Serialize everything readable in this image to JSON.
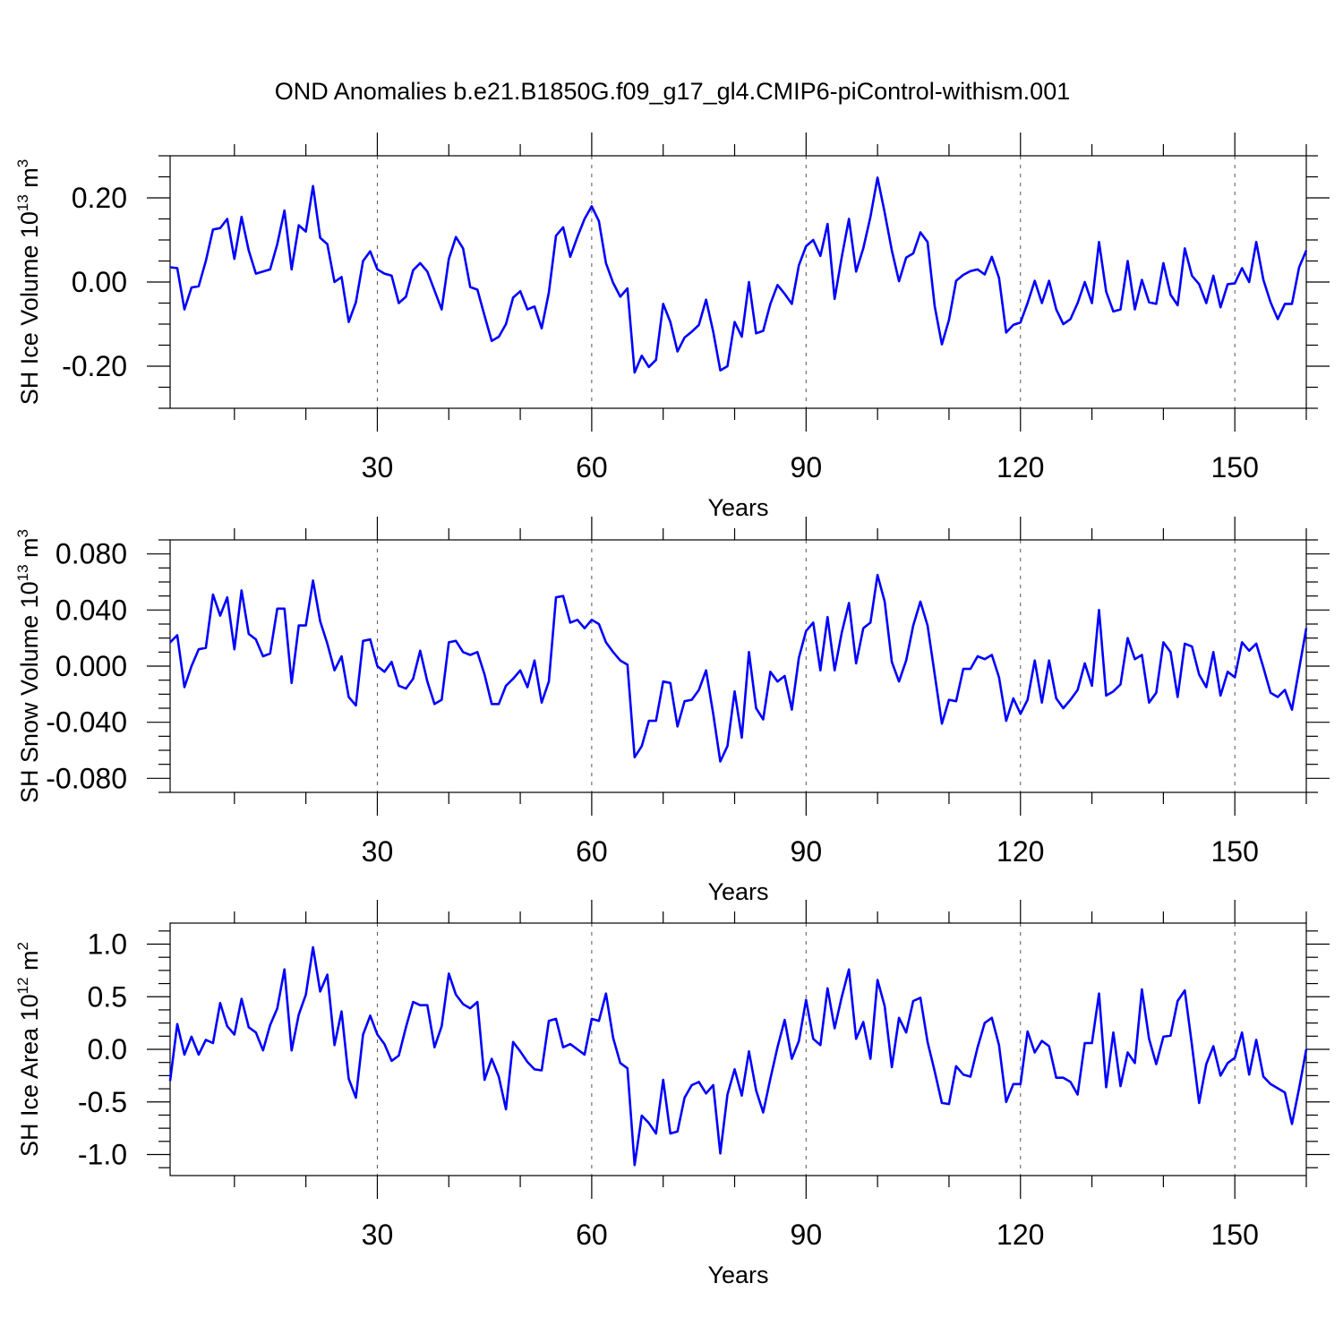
{
  "chart_data": {
    "title": "OND Anomalies b.e21.B1850G.f09_g17_gl4.CMIP6-piControl-withism.001",
    "panels": [
      {
        "type": "line",
        "ylabel": "SH Ice Volume 10",
        "ylabel_exp": "13",
        "ylabel_unit": " m",
        "ylabel_unit_exp": "3",
        "xlabel": "Years",
        "xlim": [
          1,
          160
        ],
        "ylim": [
          -0.3,
          0.3
        ],
        "yticks": [
          -0.2,
          0.0,
          0.2
        ],
        "ytick_labels": [
          "-0.20",
          "0.00",
          "0.20"
        ],
        "xticks": [
          30,
          60,
          90,
          120,
          150
        ],
        "xtick_labels": [
          "30",
          "60",
          "90",
          "120",
          "150"
        ],
        "grid_x": [
          30,
          60,
          90,
          120,
          150
        ],
        "color": "#0000ff",
        "values": [
          0.035,
          0.033,
          -0.065,
          -0.013,
          -0.01,
          0.05,
          0.125,
          0.128,
          0.15,
          0.055,
          0.155,
          0.075,
          0.02,
          0.025,
          0.03,
          0.09,
          0.17,
          0.03,
          0.135,
          0.12,
          0.228,
          0.105,
          0.09,
          0.0,
          0.012,
          -0.095,
          -0.048,
          0.05,
          0.073,
          0.03,
          0.02,
          0.015,
          -0.05,
          -0.035,
          0.028,
          0.045,
          0.025,
          -0.02,
          -0.065,
          0.055,
          0.107,
          0.08,
          -0.012,
          -0.018,
          -0.08,
          -0.14,
          -0.13,
          -0.1,
          -0.037,
          -0.022,
          -0.065,
          -0.058,
          -0.11,
          -0.025,
          0.11,
          0.13,
          0.06,
          0.107,
          0.15,
          0.18,
          0.145,
          0.045,
          -0.002,
          -0.035,
          -0.015,
          -0.215,
          -0.175,
          -0.202,
          -0.185,
          -0.052,
          -0.095,
          -0.165,
          -0.132,
          -0.118,
          -0.102,
          -0.042,
          -0.118,
          -0.21,
          -0.2,
          -0.095,
          -0.13,
          0.0,
          -0.122,
          -0.116,
          -0.052,
          -0.007,
          -0.028,
          -0.052,
          0.04,
          0.085,
          0.1,
          0.062,
          0.138,
          -0.04,
          0.06,
          0.15,
          0.025,
          0.08,
          0.155,
          0.248,
          0.165,
          0.075,
          0.002,
          0.058,
          0.068,
          0.118,
          0.095,
          -0.058,
          -0.148,
          -0.09,
          0.003,
          0.017,
          0.026,
          0.03,
          0.018,
          0.06,
          0.01,
          -0.12,
          -0.102,
          -0.096,
          -0.05,
          0.003,
          -0.05,
          0.003,
          -0.065,
          -0.1,
          -0.088,
          -0.05,
          0.0,
          -0.05,
          0.095,
          -0.023,
          -0.07,
          -0.065,
          0.05,
          -0.065,
          0.005,
          -0.048,
          -0.052,
          0.045,
          -0.03,
          -0.055,
          0.08,
          0.015,
          -0.005,
          -0.05,
          0.015,
          -0.06,
          -0.005,
          -0.003,
          0.033,
          0.0,
          0.095,
          0.005,
          -0.048,
          -0.088,
          -0.052,
          -0.052,
          0.035,
          0.075
        ]
      },
      {
        "type": "line",
        "ylabel": "SH Snow Volume 10",
        "ylabel_exp": "13",
        "ylabel_unit": " m",
        "ylabel_unit_exp": "3",
        "xlabel": "Years",
        "xlim": [
          1,
          160
        ],
        "ylim": [
          -0.09,
          0.09
        ],
        "yticks": [
          -0.08,
          -0.04,
          0.0,
          0.04,
          0.08
        ],
        "ytick_labels": [
          "-0.080",
          "-0.040",
          "0.000",
          "0.040",
          "0.080"
        ],
        "xticks": [
          30,
          60,
          90,
          120,
          150
        ],
        "xtick_labels": [
          "30",
          "60",
          "90",
          "120",
          "150"
        ],
        "grid_x": [
          30,
          60,
          90,
          120,
          150
        ],
        "color": "#0000ff",
        "values": [
          0.017,
          0.022,
          -0.015,
          0.0,
          0.012,
          0.013,
          0.051,
          0.036,
          0.049,
          0.012,
          0.054,
          0.023,
          0.019,
          0.007,
          0.009,
          0.041,
          0.041,
          -0.012,
          0.029,
          0.029,
          0.061,
          0.032,
          0.016,
          -0.003,
          0.007,
          -0.022,
          -0.028,
          0.018,
          0.019,
          0.0,
          -0.004,
          0.003,
          -0.014,
          -0.016,
          -0.009,
          0.011,
          -0.011,
          -0.027,
          -0.024,
          0.017,
          0.018,
          0.01,
          0.008,
          0.01,
          -0.006,
          -0.027,
          -0.027,
          -0.014,
          -0.009,
          -0.003,
          -0.015,
          0.004,
          -0.026,
          -0.011,
          0.049,
          0.05,
          0.031,
          0.033,
          0.027,
          0.033,
          0.03,
          0.017,
          0.01,
          0.004,
          0.001,
          -0.065,
          -0.057,
          -0.039,
          -0.039,
          -0.011,
          -0.012,
          -0.043,
          -0.025,
          -0.024,
          -0.017,
          -0.003,
          -0.034,
          -0.068,
          -0.057,
          -0.018,
          -0.051,
          0.01,
          -0.03,
          -0.038,
          -0.004,
          -0.011,
          -0.007,
          -0.031,
          0.006,
          0.025,
          0.031,
          -0.003,
          0.035,
          -0.003,
          0.024,
          0.045,
          0.002,
          0.027,
          0.031,
          0.065,
          0.046,
          0.003,
          -0.011,
          0.004,
          0.029,
          0.046,
          0.029,
          -0.006,
          -0.041,
          -0.024,
          -0.025,
          -0.002,
          -0.002,
          0.007,
          0.005,
          0.008,
          -0.008,
          -0.039,
          -0.023,
          -0.034,
          -0.024,
          0.004,
          -0.026,
          0.004,
          -0.023,
          -0.03,
          -0.024,
          -0.017,
          0.002,
          -0.014,
          0.04,
          -0.021,
          -0.018,
          -0.013,
          0.02,
          0.005,
          0.008,
          -0.026,
          -0.019,
          0.017,
          0.01,
          -0.022,
          0.016,
          0.014,
          -0.006,
          -0.015,
          0.01,
          -0.021,
          -0.004,
          -0.008,
          0.017,
          0.011,
          0.016,
          -0.001,
          -0.019,
          -0.022,
          -0.017,
          -0.031,
          -0.002,
          0.027
        ]
      },
      {
        "type": "line",
        "ylabel": "SH Ice Area 10",
        "ylabel_exp": "12",
        "ylabel_unit": " m",
        "ylabel_unit_exp": "2",
        "xlabel": "Years",
        "xlim": [
          1,
          160
        ],
        "ylim": [
          -1.2,
          1.2
        ],
        "yticks": [
          -1.0,
          -0.5,
          0.0,
          0.5,
          1.0
        ],
        "ytick_labels": [
          "-1.0",
          "-0.5",
          "0.0",
          "0.5",
          "1.0"
        ],
        "xticks": [
          30,
          60,
          90,
          120,
          150
        ],
        "xtick_labels": [
          "30",
          "60",
          "90",
          "120",
          "150"
        ],
        "grid_x": [
          30,
          60,
          90,
          120,
          150
        ],
        "color": "#0000ff",
        "values": [
          -0.3,
          0.24,
          -0.05,
          0.12,
          -0.05,
          0.09,
          0.06,
          0.44,
          0.22,
          0.14,
          0.48,
          0.21,
          0.16,
          -0.01,
          0.23,
          0.39,
          0.76,
          -0.01,
          0.33,
          0.52,
          0.97,
          0.55,
          0.71,
          0.04,
          0.36,
          -0.28,
          -0.46,
          0.14,
          0.32,
          0.14,
          0.05,
          -0.11,
          -0.06,
          0.21,
          0.45,
          0.42,
          0.42,
          0.02,
          0.22,
          0.72,
          0.52,
          0.43,
          0.39,
          0.45,
          -0.29,
          -0.09,
          -0.26,
          -0.57,
          0.07,
          -0.02,
          -0.12,
          -0.19,
          -0.2,
          0.27,
          0.29,
          0.02,
          0.05,
          0.0,
          -0.05,
          0.29,
          0.27,
          0.53,
          0.11,
          -0.13,
          -0.18,
          -1.1,
          -0.63,
          -0.7,
          -0.8,
          -0.29,
          -0.8,
          -0.78,
          -0.46,
          -0.34,
          -0.31,
          -0.42,
          -0.34,
          -0.99,
          -0.43,
          -0.19,
          -0.44,
          -0.02,
          -0.39,
          -0.6,
          -0.28,
          0.02,
          0.28,
          -0.09,
          0.08,
          0.47,
          0.1,
          0.04,
          0.58,
          0.2,
          0.5,
          0.76,
          0.1,
          0.26,
          -0.09,
          0.66,
          0.41,
          -0.17,
          0.3,
          0.16,
          0.46,
          0.49,
          0.07,
          -0.21,
          -0.51,
          -0.52,
          -0.16,
          -0.24,
          -0.26,
          0.02,
          0.25,
          0.3,
          0.04,
          -0.5,
          -0.33,
          -0.33,
          0.17,
          -0.03,
          0.08,
          0.03,
          -0.27,
          -0.27,
          -0.31,
          -0.43,
          0.06,
          0.06,
          0.53,
          -0.36,
          0.16,
          -0.35,
          -0.03,
          -0.13,
          0.57,
          0.1,
          -0.14,
          0.12,
          0.13,
          0.46,
          0.56,
          0.04,
          -0.51,
          -0.14,
          0.03,
          -0.25,
          -0.13,
          -0.08,
          0.16,
          -0.24,
          0.09,
          -0.26,
          -0.33,
          -0.37,
          -0.41,
          -0.71,
          -0.37,
          0.0
        ]
      }
    ]
  }
}
